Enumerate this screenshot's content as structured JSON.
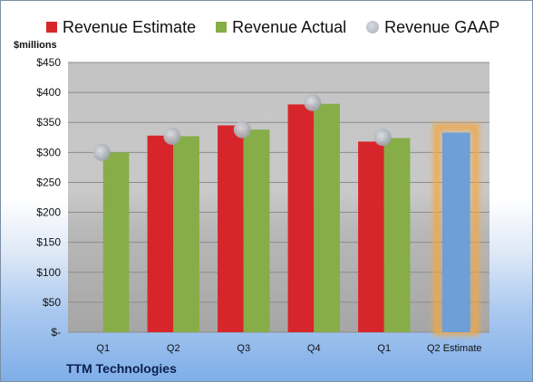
{
  "chart_data": {
    "type": "bar",
    "unit_label": "$millions",
    "categories": [
      "Q1",
      "Q2",
      "Q3",
      "Q4",
      "Q1",
      "Q2 Estimate"
    ],
    "series": [
      {
        "name": "Revenue Estimate",
        "color": "#d7262b",
        "values": [
          null,
          328,
          345,
          380,
          318,
          null
        ]
      },
      {
        "name": "Revenue Actual",
        "color": "#86ad47",
        "values": [
          300,
          327,
          338,
          381,
          324,
          null
        ]
      },
      {
        "name": "Revenue GAAP",
        "color": "#a9adb6",
        "kind": "marker",
        "values": [
          300,
          327,
          338,
          383,
          325,
          null
        ]
      }
    ],
    "highlight": {
      "category": "Q2 Estimate",
      "value": 333,
      "color": "#6e9fd6",
      "glow_color": "#f2a742"
    },
    "yticks": [
      "$-",
      "$50",
      "$100",
      "$150",
      "$200",
      "$250",
      "$300",
      "$350",
      "$400",
      "$450"
    ],
    "ylim": [
      0,
      450
    ],
    "grid": true,
    "legend_position": "top"
  },
  "footer": {
    "company": "TTM Technologies"
  }
}
